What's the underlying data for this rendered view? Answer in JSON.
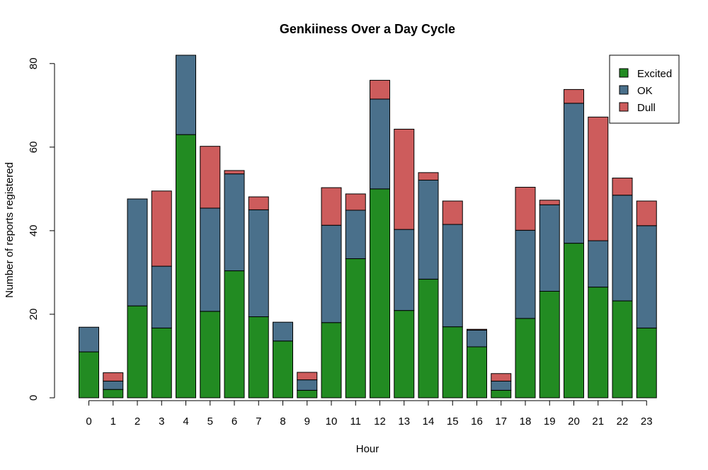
{
  "chart_data": {
    "type": "bar",
    "stacked": true,
    "title": "Genkiiness Over a Day Cycle",
    "xlabel": "Hour",
    "ylabel": "Number of reports registered",
    "ylim": [
      0,
      82
    ],
    "yticks": [
      0,
      20,
      40,
      60,
      80
    ],
    "categories": [
      "0",
      "1",
      "2",
      "3",
      "4",
      "5",
      "6",
      "7",
      "8",
      "9",
      "10",
      "11",
      "12",
      "13",
      "14",
      "15",
      "16",
      "17",
      "18",
      "19",
      "20",
      "21",
      "22",
      "23"
    ],
    "series": [
      {
        "name": "Excited",
        "color": "#228B22",
        "values": [
          11,
          2,
          22,
          16.7,
          63,
          20.7,
          30.4,
          19.4,
          13.6,
          1.8,
          18,
          33.3,
          50,
          20.9,
          28.4,
          17,
          12.2,
          1.8,
          19,
          25.5,
          37,
          26.5,
          23.2,
          16.7
        ]
      },
      {
        "name": "OK",
        "color": "#4A708B",
        "values": [
          5.9,
          2,
          25.6,
          14.8,
          19,
          24.7,
          23.2,
          25.6,
          4.5,
          2.5,
          23.3,
          11.6,
          21.5,
          19.4,
          23.7,
          24.5,
          4,
          2.2,
          21.1,
          20.7,
          33.5,
          11.1,
          25.3,
          24.5
        ]
      },
      {
        "name": "Dull",
        "color": "#CD5C5C",
        "values": [
          0,
          2,
          0,
          18,
          0,
          14.8,
          0.8,
          3.1,
          0,
          1.8,
          9,
          3.9,
          4.5,
          24,
          1.8,
          5.6,
          0.2,
          1.8,
          10.3,
          1.1,
          3.3,
          29.6,
          4.1,
          5.9
        ]
      }
    ],
    "legend_position": "top-right",
    "grid": false
  }
}
